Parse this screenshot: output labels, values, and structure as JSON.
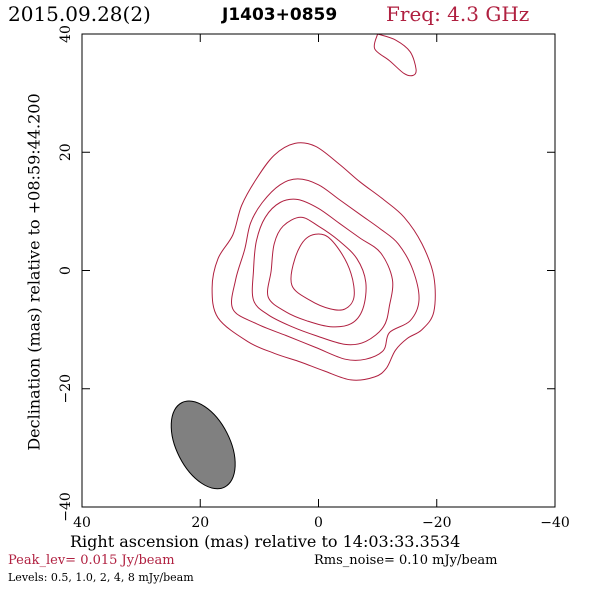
{
  "header": {
    "date": "2015.09.28(2)",
    "source": "J1403+0859",
    "freq": "Freq: 4.3 GHz"
  },
  "axes": {
    "xlabel": "Right ascension (mas) relative to 14:03:33.3534",
    "ylabel": "Declination (mas) relative to +08:59:44.200"
  },
  "footer": {
    "peak": "Peak_lev=  0.015 Jy/beam",
    "rms": "Rms_noise= 0.10 mJy/beam",
    "levels": "Levels: 0.5, 1.0,    2,    4,    8 mJy/beam"
  },
  "colors": {
    "contour": "#b02040",
    "beam": "#808080",
    "axis": "#000000"
  },
  "chart_data": {
    "type": "contour",
    "title": "J1403+0859",
    "xlabel": "Right ascension (mas) relative to 14:03:33.3534",
    "ylabel": "Declination (mas) relative to +08:59:44.200",
    "xlim": [
      40,
      -40
    ],
    "ylim": [
      -40,
      40
    ],
    "x_ticks": [
      40,
      20,
      0,
      -20,
      -40
    ],
    "y_ticks": [
      -40,
      -20,
      0,
      20,
      40
    ],
    "x_tick_labels": [
      "40",
      "20",
      "0",
      "−20",
      "−40"
    ],
    "y_tick_labels": [
      "−40",
      "−20",
      "0",
      "20",
      "40"
    ],
    "levels_mJy_per_beam": [
      0.5,
      1.0,
      2,
      4,
      8
    ],
    "peak_Jy_per_beam": 0.015,
    "rms_noise_mJy_per_beam": 0.1,
    "contours": [
      {
        "level": 0.5,
        "points": [
          [
            17.0,
            -8.0
          ],
          [
            18.0,
            -3.0
          ],
          [
            17.0,
            2.0
          ],
          [
            14.5,
            6.0
          ],
          [
            13.0,
            11.0
          ],
          [
            10.5,
            15.5
          ],
          [
            7.5,
            19.5
          ],
          [
            4.0,
            21.5
          ],
          [
            0.5,
            21.0
          ],
          [
            -3.5,
            18.0
          ],
          [
            -7.0,
            15.0
          ],
          [
            -11.0,
            12.0
          ],
          [
            -14.5,
            9.0
          ],
          [
            -17.5,
            4.5
          ],
          [
            -19.5,
            -1.0
          ],
          [
            -19.5,
            -7.0
          ],
          [
            -17.5,
            -10.0
          ],
          [
            -15.0,
            -11.5
          ],
          [
            -13.0,
            -13.5
          ],
          [
            -11.5,
            -16.5
          ],
          [
            -9.5,
            -18.0
          ],
          [
            -5.5,
            -18.5
          ],
          [
            -1.0,
            -17.0
          ],
          [
            3.0,
            -15.5
          ],
          [
            7.5,
            -14.0
          ],
          [
            12.0,
            -12.0
          ]
        ]
      },
      {
        "level": 1.0,
        "points": [
          [
            14.5,
            -6.5
          ],
          [
            14.0,
            -1.5
          ],
          [
            12.5,
            3.5
          ],
          [
            11.5,
            8.0
          ],
          [
            9.5,
            11.5
          ],
          [
            6.5,
            14.5
          ],
          [
            3.5,
            15.5
          ],
          [
            0.0,
            14.5
          ],
          [
            -3.5,
            12.0
          ],
          [
            -7.0,
            9.5
          ],
          [
            -10.5,
            7.0
          ],
          [
            -13.5,
            4.5
          ],
          [
            -16.0,
            0.0
          ],
          [
            -17.0,
            -5.0
          ],
          [
            -15.5,
            -8.5
          ],
          [
            -12.0,
            -10.5
          ],
          [
            -11.0,
            -13.5
          ],
          [
            -8.0,
            -15.0
          ],
          [
            -4.5,
            -15.0
          ],
          [
            0.5,
            -13.0
          ],
          [
            5.5,
            -11.0
          ],
          [
            10.5,
            -9.0
          ]
        ]
      },
      {
        "level": 2,
        "points": [
          [
            11.0,
            -5.0
          ],
          [
            11.0,
            0.0
          ],
          [
            10.5,
            5.0
          ],
          [
            9.0,
            9.0
          ],
          [
            6.5,
            11.5
          ],
          [
            3.5,
            12.0
          ],
          [
            0.0,
            10.5
          ],
          [
            -3.5,
            8.0
          ],
          [
            -7.0,
            5.5
          ],
          [
            -10.5,
            3.0
          ],
          [
            -12.5,
            -1.5
          ],
          [
            -12.0,
            -6.0
          ],
          [
            -11.0,
            -9.5
          ],
          [
            -8.0,
            -12.0
          ],
          [
            -4.5,
            -12.5
          ],
          [
            0.5,
            -11.0
          ],
          [
            4.5,
            -9.5
          ],
          [
            8.5,
            -7.5
          ]
        ]
      },
      {
        "level": 4,
        "points": [
          [
            8.5,
            -4.5
          ],
          [
            8.0,
            0.0
          ],
          [
            7.5,
            4.5
          ],
          [
            6.0,
            7.5
          ],
          [
            3.0,
            9.0
          ],
          [
            0.0,
            7.5
          ],
          [
            -3.5,
            5.0
          ],
          [
            -6.5,
            2.0
          ],
          [
            -8.0,
            -2.0
          ],
          [
            -7.5,
            -6.5
          ],
          [
            -5.5,
            -9.0
          ],
          [
            -2.0,
            -9.5
          ],
          [
            2.0,
            -8.5
          ],
          [
            5.5,
            -7.0
          ]
        ]
      },
      {
        "level": 8,
        "points": [
          [
            4.5,
            -2.5
          ],
          [
            4.0,
            2.0
          ],
          [
            2.0,
            5.5
          ],
          [
            -1.0,
            6.0
          ],
          [
            -3.5,
            3.5
          ],
          [
            -5.5,
            -0.5
          ],
          [
            -6.0,
            -4.5
          ],
          [
            -4.5,
            -6.5
          ],
          [
            -2.0,
            -6.5
          ],
          [
            1.5,
            -5.0
          ]
        ]
      }
    ],
    "edge_contour": {
      "level": 0.5,
      "points": [
        [
          -10.0,
          40.0
        ],
        [
          -13.0,
          39.0
        ],
        [
          -15.5,
          37.0
        ],
        [
          -16.5,
          34.0
        ],
        [
          -16.0,
          33.0
        ],
        [
          -14.5,
          33.3
        ],
        [
          -12.0,
          35.5
        ],
        [
          -9.5,
          37.5
        ],
        [
          -10.0,
          40.0
        ]
      ]
    },
    "beam": {
      "center": [
        19.5,
        -29.5
      ],
      "major_mas": 16,
      "minor_mas": 9,
      "pa_deg": 27
    }
  }
}
